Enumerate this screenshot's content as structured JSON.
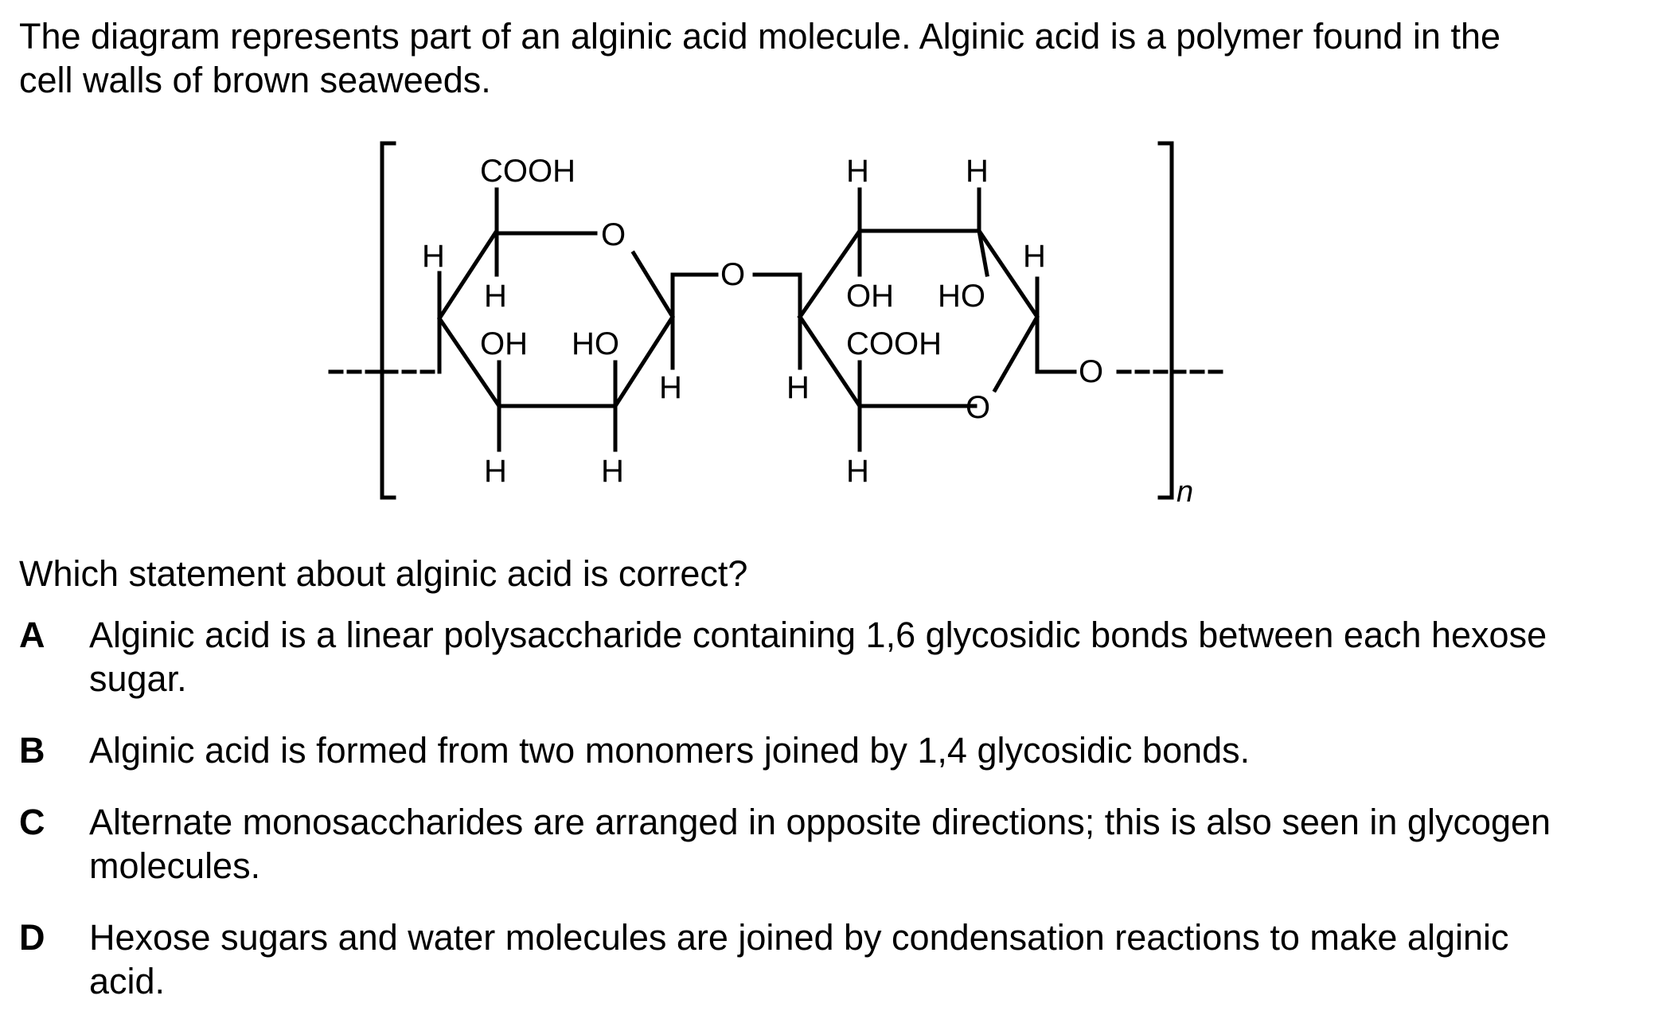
{
  "intro": {
    "line1": "The diagram represents part of an alginic acid molecule. Alginic acid is a polymer found in the",
    "line2": "cell walls of brown seaweeds."
  },
  "diagram": {
    "labels": {
      "cooh_left": "COOH",
      "h_left_ring_outer": "H",
      "o_ring_left": "O",
      "h_c5_left": "H",
      "oh_left": "OH",
      "ho_left": "HO",
      "h_c1_left": "H",
      "o_bridge": "O",
      "h_c4_left": "H",
      "h_c3_left": "H",
      "h_top_right_1": "H",
      "h_top_right_2": "H",
      "h_right_outer": "H",
      "oh_right": "OH",
      "ho_right": "HO",
      "cooh_right": "COOH",
      "h_c4_right": "H",
      "o_ring_right": "O",
      "h_bottom_right": "H",
      "o_end": "O",
      "subscript_n": "n"
    }
  },
  "question": "Which statement about alginic acid is correct?",
  "options": [
    {
      "letter": "A",
      "lines": [
        "Alginic acid is a linear polysaccharide containing 1,6 glycosidic bonds between each hexose",
        "sugar."
      ]
    },
    {
      "letter": "B",
      "lines": [
        "Alginic acid is formed from two monomers joined by 1,4 glycosidic bonds."
      ]
    },
    {
      "letter": "C",
      "lines": [
        "Alternate monosaccharides are arranged in opposite directions; this is also seen in glycogen",
        "molecules."
      ]
    },
    {
      "letter": "D",
      "lines": [
        "Hexose sugars and water molecules are joined by condensation reactions to make alginic",
        "acid."
      ]
    }
  ]
}
